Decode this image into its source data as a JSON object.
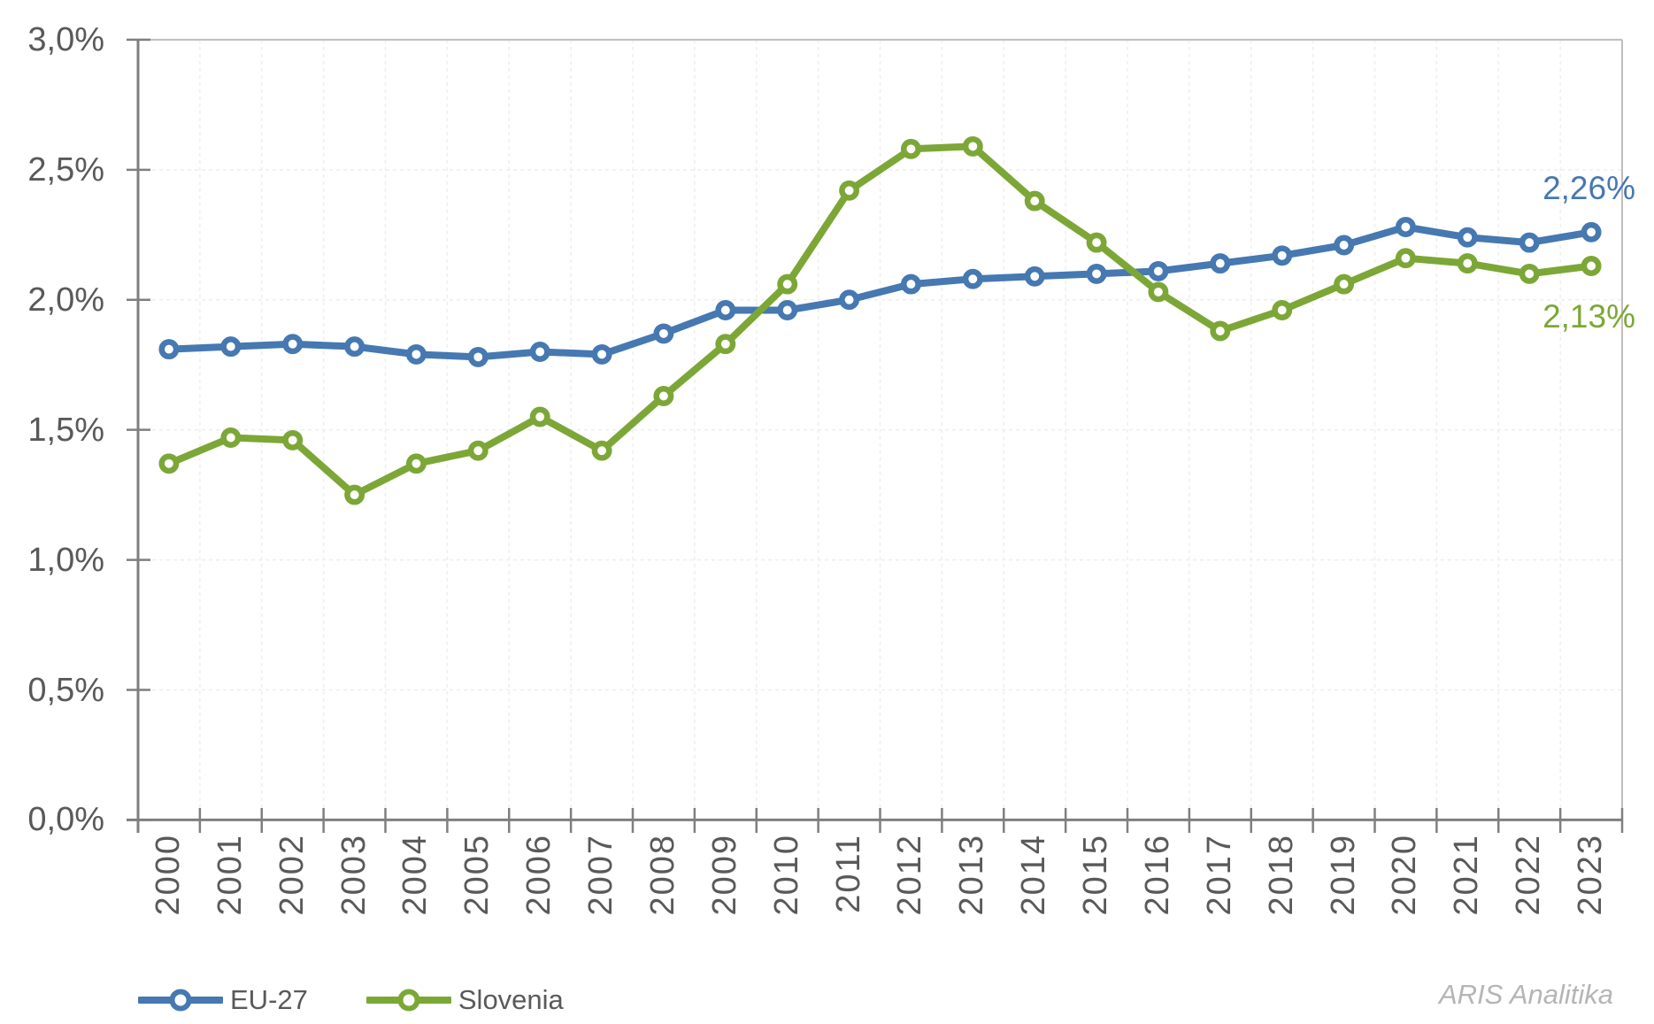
{
  "chart_data": {
    "type": "line",
    "title": "",
    "categories": [
      "2000",
      "2001",
      "2002",
      "2003",
      "2004",
      "2005",
      "2006",
      "2007",
      "2008",
      "2009",
      "2010",
      "2011",
      "2012",
      "2013",
      "2014",
      "2015",
      "2016",
      "2017",
      "2018",
      "2019",
      "2020",
      "2021",
      "2022",
      "2023"
    ],
    "series": [
      {
        "name": "EU-27",
        "color": "#4678b1",
        "values": [
          1.81,
          1.82,
          1.83,
          1.82,
          1.79,
          1.78,
          1.8,
          1.79,
          1.87,
          1.96,
          1.96,
          2.0,
          2.06,
          2.08,
          2.09,
          2.1,
          2.11,
          2.14,
          2.17,
          2.21,
          2.28,
          2.24,
          2.22,
          2.26
        ],
        "end_label": "2,26%"
      },
      {
        "name": "Slovenia",
        "color": "#7ca737",
        "values": [
          1.37,
          1.47,
          1.46,
          1.25,
          1.37,
          1.42,
          1.55,
          1.42,
          1.63,
          1.83,
          2.06,
          2.42,
          2.58,
          2.59,
          2.38,
          2.22,
          2.03,
          1.88,
          1.96,
          2.06,
          2.16,
          2.14,
          2.1,
          2.13
        ],
        "end_label": "2,13%"
      }
    ],
    "ylim": [
      0,
      3
    ],
    "ytick_step": 0.5,
    "ytick_labels": [
      "0,0%",
      "0,5%",
      "1,0%",
      "1,5%",
      "2,0%",
      "2,5%",
      "3,0%"
    ],
    "grid": true,
    "legend_position": "bottom-left",
    "colors": {
      "axis": "#7f7f7f",
      "plot_border": "#c1bdbd",
      "gridline": "#f0eded",
      "tick_text": "#595959",
      "credit_text": "#b5b5b5",
      "marker_fill": "#ffffff"
    },
    "credit": "ARIS Analitika"
  }
}
